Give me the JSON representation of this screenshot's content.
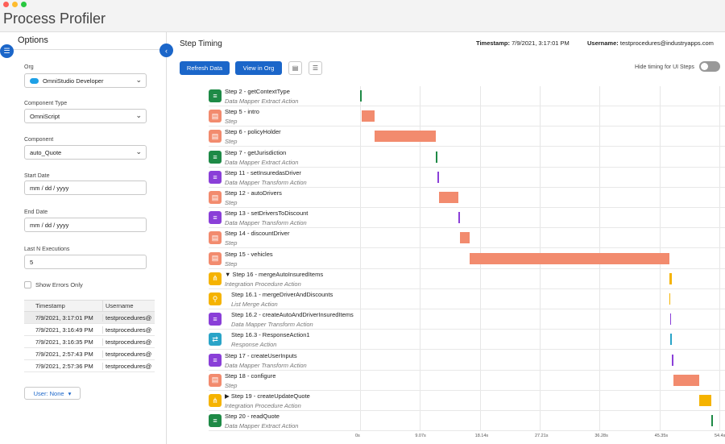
{
  "window": {
    "title": "Process Profiler",
    "traffic_lights": [
      "#fe5f57",
      "#febc2e",
      "#28c840"
    ]
  },
  "options": {
    "title": "Options",
    "org_label": "Org",
    "org_value": "OmniStudio Developer",
    "component_type_label": "Component Type",
    "component_type_value": "OmniScript",
    "component_label": "Component",
    "component_value": "auto_Quote",
    "start_date_label": "Start Date",
    "start_date_placeholder": "mm / dd / yyyy",
    "end_date_label": "End Date",
    "end_date_placeholder": "mm / dd / yyyy",
    "last_n_label": "Last N Executions",
    "last_n_value": "5",
    "show_errors_label": "Show Errors Only",
    "history": {
      "headers": [
        "Timestamp",
        "Username"
      ],
      "rows": [
        [
          "7/9/2021, 3:17:01 PM",
          "testprocedures@"
        ],
        [
          "7/9/2021, 3:16:49 PM",
          "testprocedures@"
        ],
        [
          "7/9/2021, 3:16:35 PM",
          "testprocedures@"
        ],
        [
          "7/9/2021, 2:57:43 PM",
          "testprocedures@"
        ],
        [
          "7/9/2021, 2:57:36 PM",
          "testprocedures@"
        ]
      ]
    },
    "user_filter": "User: None"
  },
  "main": {
    "title": "Step Timing",
    "timestamp_label": "Timestamp:",
    "timestamp_value": "7/9/2021, 3:17:01 PM",
    "username_label": "Username:",
    "username_value": "testprocedures@industryapps.com",
    "refresh_button": "Refresh Data",
    "view_button": "View in Org",
    "hide_timing_label": "Hide timing for UI Steps"
  },
  "chart_data": {
    "type": "bar",
    "x_ticks": [
      "0s",
      "9.07s",
      "18.14s",
      "27.21s",
      "36.28s",
      "45.35s",
      "54.4s"
    ],
    "xlim": [
      0,
      54.4
    ],
    "steps": [
      {
        "name": "Step 2 - getContextType",
        "type": "Data Mapper Extract Action",
        "icon": "database-icon",
        "color": "#1e8a46",
        "start": 0.0,
        "end": 0.25
      },
      {
        "name": "Step 5 - intro",
        "type": "Step",
        "icon": "form-icon",
        "color": "#f28b6e",
        "start": 0.25,
        "end": 2.2
      },
      {
        "name": "Step 6 - policyHolder",
        "type": "Step",
        "icon": "form-icon",
        "color": "#f28b6e",
        "start": 2.2,
        "end": 11.5
      },
      {
        "name": "Step 7 - getJurisdiction",
        "type": "Data Mapper Extract Action",
        "icon": "database-icon",
        "color": "#1e8a46",
        "start": 11.5,
        "end": 11.75
      },
      {
        "name": "Step 11 - setInsuredasDriver",
        "type": "Data Mapper Transform Action",
        "icon": "database-icon",
        "color": "#8a3fd8",
        "start": 11.75,
        "end": 11.95
      },
      {
        "name": "Step 12 - autoDrivers",
        "type": "Step",
        "icon": "form-icon",
        "color": "#f28b6e",
        "start": 11.95,
        "end": 14.9
      },
      {
        "name": "Step 13 - setDriversToDiscount",
        "type": "Data Mapper Transform Action",
        "icon": "database-icon",
        "color": "#8a3fd8",
        "start": 14.9,
        "end": 15.1
      },
      {
        "name": "Step 14 - discountDriver",
        "type": "Step",
        "icon": "form-icon",
        "color": "#f28b6e",
        "start": 15.1,
        "end": 16.6
      },
      {
        "name": "Step 15 - vehicles",
        "type": "Step",
        "icon": "form-icon",
        "color": "#f28b6e",
        "start": 16.6,
        "end": 46.8
      },
      {
        "name": "▼ Step 16 - mergeAutoInsuredItems",
        "type": "Integration Procedure Action",
        "icon": "flow-icon",
        "color": "#f5b300",
        "start": 46.8,
        "end": 47.15
      },
      {
        "name": "Step 16.1 - mergeDriverAndDiscounts",
        "type": "List Merge Action",
        "icon": "merge-icon",
        "color": "#f5b300",
        "start": 46.8,
        "end": 46.9,
        "child": true
      },
      {
        "name": "Step 16.2 - createAutoAndDriverInsuredItems",
        "type": "Data Mapper Transform Action",
        "icon": "database-icon",
        "color": "#8a3fd8",
        "start": 46.9,
        "end": 47.0,
        "child": true
      },
      {
        "name": "Step 16.3 - ResponseAction1",
        "type": "Response Action",
        "icon": "response-icon",
        "color": "#2aa4c8",
        "start": 47.0,
        "end": 47.1,
        "child": true
      },
      {
        "name": "Step 17 - createUserInputs",
        "type": "Data Mapper Transform Action",
        "icon": "database-icon",
        "color": "#8a3fd8",
        "start": 47.15,
        "end": 47.45
      },
      {
        "name": "Step 18 - configure",
        "type": "Step",
        "icon": "form-icon",
        "color": "#f28b6e",
        "start": 47.45,
        "end": 51.3
      },
      {
        "name": "▶ Step 19 - createUpdateQuote",
        "type": "Integration Procedure Action",
        "icon": "flow-icon",
        "color": "#f5b300",
        "start": 51.3,
        "end": 53.2
      },
      {
        "name": "Step 20 - readQuote",
        "type": "Data Mapper Extract Action",
        "icon": "database-icon",
        "color": "#1e8a46",
        "start": 53.2,
        "end": 53.45
      }
    ]
  }
}
